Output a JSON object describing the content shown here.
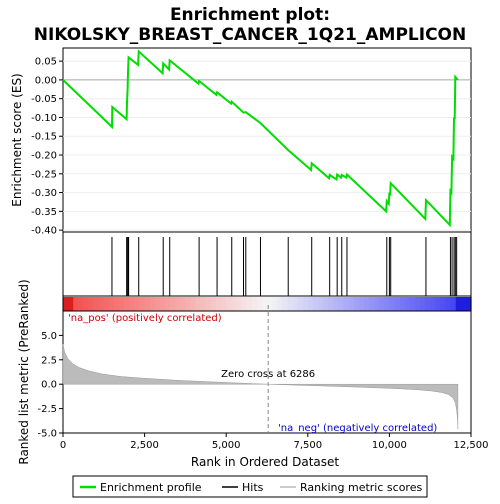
{
  "chart_data": {
    "type": "line",
    "title_line1": "Enrichment plot:",
    "title_line2": "NIKOLSKY_BREAST_CANCER_1Q21_AMPLICON",
    "top_panel": {
      "ylabel": "Enrichment score (ES)",
      "ylim": [
        -0.405,
        0.085
      ],
      "yticks": [
        0.05,
        0.0,
        -0.05,
        -0.1,
        -0.15,
        -0.2,
        -0.25,
        -0.3,
        -0.35,
        -0.4
      ],
      "ytick_labels": [
        "0.05",
        "0.00",
        "-0.05",
        "-0.10",
        "-0.15",
        "-0.20",
        "-0.25",
        "-0.30",
        "-0.35",
        "-0.40"
      ],
      "series_color": "#00dd00",
      "es_profile": [
        [
          0,
          0.0
        ],
        [
          1500,
          -0.125
        ],
        [
          1510,
          -0.072
        ],
        [
          1950,
          -0.105
        ],
        [
          1960,
          -0.06
        ],
        [
          1980,
          -0.025
        ],
        [
          1990,
          0.02
        ],
        [
          2010,
          0.06
        ],
        [
          2300,
          0.04
        ],
        [
          2320,
          0.076
        ],
        [
          3050,
          0.018
        ],
        [
          3070,
          0.044
        ],
        [
          3250,
          0.028
        ],
        [
          3270,
          0.052
        ],
        [
          4150,
          -0.01
        ],
        [
          4170,
          -0.003
        ],
        [
          4700,
          -0.04
        ],
        [
          4720,
          -0.033
        ],
        [
          5150,
          -0.063
        ],
        [
          5170,
          -0.058
        ],
        [
          5530,
          -0.087
        ],
        [
          5600,
          -0.086
        ],
        [
          6050,
          -0.115
        ],
        [
          6900,
          -0.187
        ],
        [
          7600,
          -0.24
        ],
        [
          7620,
          -0.222
        ],
        [
          8150,
          -0.262
        ],
        [
          8170,
          -0.253
        ],
        [
          8380,
          -0.265
        ],
        [
          8400,
          -0.252
        ],
        [
          8520,
          -0.26
        ],
        [
          8540,
          -0.253
        ],
        [
          8680,
          -0.26
        ],
        [
          8700,
          -0.252
        ],
        [
          9900,
          -0.35
        ],
        [
          9920,
          -0.323
        ],
        [
          9980,
          -0.33
        ],
        [
          10000,
          -0.3
        ],
        [
          10020,
          -0.308
        ],
        [
          10040,
          -0.275
        ],
        [
          11100,
          -0.37
        ],
        [
          11120,
          -0.32
        ],
        [
          11850,
          -0.386
        ],
        [
          11870,
          -0.296
        ],
        [
          11900,
          -0.3
        ],
        [
          11920,
          -0.205
        ],
        [
          11960,
          -0.21
        ],
        [
          11980,
          -0.1
        ],
        [
          12000,
          -0.105
        ],
        [
          12020,
          0.008
        ],
        [
          12100,
          0.0
        ]
      ]
    },
    "hits": [
      1500,
      1950,
      1980,
      2000,
      2010,
      2320,
      3070,
      3270,
      4170,
      4720,
      5170,
      5530,
      5600,
      6050,
      6900,
      7620,
      8170,
      8400,
      8540,
      8700,
      9920,
      10000,
      10040,
      11120,
      11870,
      11920,
      11980,
      12020,
      12060
    ],
    "color_bar": {
      "label_pos": "'na_pos' (positively correlated)",
      "label_neg": "'na_neg' (negatively correlated)",
      "label_pos_color": "#cc0000",
      "label_neg_color": "#0000cc"
    },
    "bottom_panel": {
      "ylabel": "Ranked list metric (PreRanked)",
      "xlabel": "Rank in Ordered Dataset",
      "xlim": [
        0,
        12500
      ],
      "ylim": [
        -5.0,
        7.5
      ],
      "xticks": [
        0,
        2500,
        5000,
        7500,
        10000,
        12500
      ],
      "xtick_labels": [
        "0",
        "2,500",
        "5,000",
        "7,500",
        "10,000",
        "12,500"
      ],
      "yticks": [
        5.0,
        2.5,
        0.0,
        -2.5,
        -5.0
      ],
      "ytick_labels": [
        "5.0",
        "2.5",
        "0.0",
        "-2.5",
        "-5.0"
      ],
      "zero_cross_text": "Zero cross at 6286",
      "zero_cross": 6286,
      "metric_curve": [
        [
          0,
          4.1
        ],
        [
          50,
          3.3
        ],
        [
          150,
          2.6
        ],
        [
          300,
          2.1
        ],
        [
          500,
          1.7
        ],
        [
          800,
          1.35
        ],
        [
          1200,
          1.05
        ],
        [
          1800,
          0.78
        ],
        [
          2500,
          0.6
        ],
        [
          3500,
          0.4
        ],
        [
          4500,
          0.25
        ],
        [
          5500,
          0.1
        ],
        [
          6286,
          0.0
        ],
        [
          7000,
          -0.08
        ],
        [
          8000,
          -0.18
        ],
        [
          9000,
          -0.3
        ],
        [
          10000,
          -0.42
        ],
        [
          10800,
          -0.55
        ],
        [
          11300,
          -0.7
        ],
        [
          11600,
          -0.85
        ],
        [
          11800,
          -1.05
        ],
        [
          11950,
          -1.4
        ],
        [
          12020,
          -1.9
        ],
        [
          12060,
          -2.6
        ],
        [
          12085,
          -3.6
        ],
        [
          12100,
          -4.6
        ]
      ]
    },
    "legend": {
      "entries": [
        "Enrichment profile",
        "Hits",
        "Ranking metric scores"
      ],
      "colors": [
        "#00dd00",
        "#000000",
        "#bbbbbb"
      ],
      "placement": "bottom"
    }
  }
}
